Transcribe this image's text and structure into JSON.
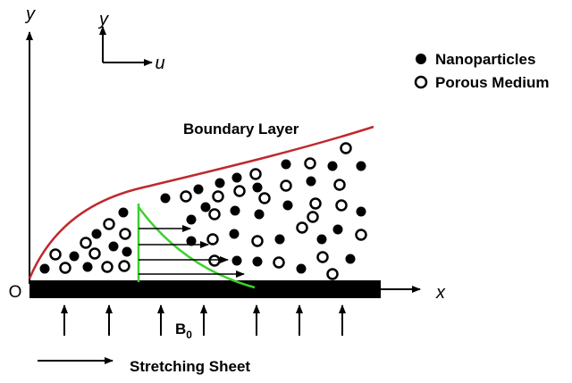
{
  "axes": {
    "y": "y",
    "x": "x",
    "origin": "O"
  },
  "inset_axes": {
    "y": "y",
    "x": "u"
  },
  "legend": {
    "filled": "Nanoparticles",
    "hollow": "Porous Medium"
  },
  "boundary_label": "Boundary Layer",
  "field_label": {
    "base": "B",
    "sub": "0"
  },
  "sheet_label": "Stretching Sheet"
}
